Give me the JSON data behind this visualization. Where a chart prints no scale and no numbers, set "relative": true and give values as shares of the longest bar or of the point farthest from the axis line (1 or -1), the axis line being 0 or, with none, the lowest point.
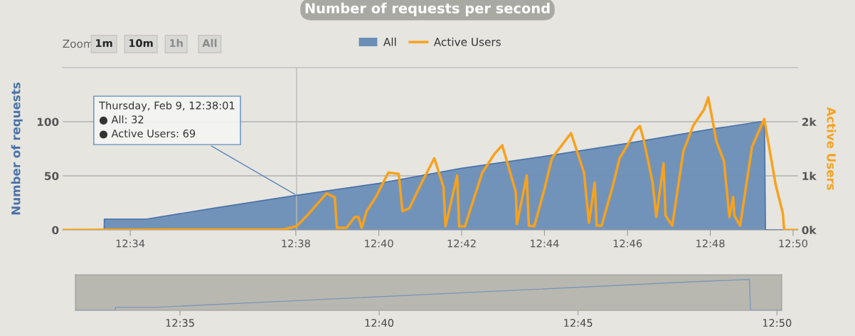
{
  "chart_data": [
    {
      "type": "area",
      "title": "Number of requests per second",
      "ylabel": "Number of requests",
      "y2label": "Active Users",
      "series": [
        {
          "name": "All",
          "type": "area",
          "color": "#6b8eb6",
          "x": [
            12.5395,
            12.5562,
            12.5563,
            12.5733,
            12.6,
            12.6336,
            12.6667,
            12.7,
            12.7333,
            12.7667,
            12.8,
            12.82,
            12.8218,
            12.8222,
            12.8353
          ],
          "values": [
            0,
            0,
            10,
            10,
            20,
            32,
            43,
            57,
            68,
            80,
            93,
            100,
            100,
            0,
            0
          ]
        },
        {
          "name": "Active Users",
          "type": "line",
          "axis": "y2",
          "color": "#f7a21d",
          "x": [
            12.5395,
            12.6285,
            12.6336,
            12.6378,
            12.6457,
            12.649,
            12.6498,
            12.6537,
            12.657,
            12.6585,
            12.6598,
            12.6618,
            12.6655,
            12.6705,
            12.6747,
            12.6762,
            12.679,
            12.6835,
            12.689,
            12.6927,
            12.6935,
            12.6982,
            12.699,
            12.7013,
            12.7083,
            12.7132,
            12.7163,
            12.7218,
            12.7222,
            12.7262,
            12.727,
            12.7292,
            12.7332,
            12.7363,
            12.7407,
            12.744,
            12.7492,
            12.7512,
            12.7535,
            12.7543,
            12.7563,
            12.7607,
            12.7635,
            12.7675,
            12.7697,
            12.7717,
            12.7732,
            12.7768,
            12.7783,
            12.7812,
            12.782,
            12.7847,
            12.7892,
            12.7932,
            12.7975,
            12.7992,
            12.8025,
            12.8055,
            12.8077,
            12.8092,
            12.8097,
            12.812,
            12.8168,
            12.8217,
            12.8263,
            12.8292,
            12.8297,
            12.8353
          ],
          "values": [
            0,
            10,
            69,
            265,
            675,
            600,
            40,
            40,
            240,
            240,
            40,
            345,
            610,
            1060,
            1035,
            345,
            400,
            835,
            1325,
            795,
            66,
            1005,
            66,
            66,
            1060,
            1405,
            1565,
            700,
            105,
            1005,
            80,
            66,
            740,
            1325,
            1590,
            1790,
            1060,
            130,
            875,
            80,
            80,
            795,
            1325,
            1630,
            1830,
            1920,
            1670,
            875,
            240,
            1230,
            265,
            80,
            1460,
            1935,
            2225,
            2450,
            1630,
            1270,
            240,
            610,
            265,
            80,
            1540,
            2050,
            835,
            305,
            0,
            0
          ]
        }
      ],
      "xlim": [
        12.5395,
        12.8353
      ],
      "xticks": [
        {
          "value": 12.5667,
          "label": "12:34"
        },
        {
          "value": 12.6333,
          "label": "12:38"
        },
        {
          "value": 12.6667,
          "label": "12:40"
        },
        {
          "value": 12.7,
          "label": "12:42"
        },
        {
          "value": 12.7333,
          "label": "12:44"
        },
        {
          "value": 12.7667,
          "label": "12:46"
        },
        {
          "value": 12.8,
          "label": "12:48"
        },
        {
          "value": 12.8333,
          "label": "12:50"
        }
      ],
      "ylim": [
        0,
        150
      ],
      "yticks": [
        0,
        50,
        100
      ],
      "y2lim": [
        0,
        3000
      ],
      "y2ticks": [
        {
          "value": 0,
          "label": "0k"
        },
        {
          "value": 1000,
          "label": "1k"
        },
        {
          "value": 2000,
          "label": "2k"
        }
      ],
      "grid": "y",
      "legend": "top",
      "ref_lines": [
        {
          "axis": "x",
          "value": 12.6336,
          "color": "#b8b8b8"
        }
      ],
      "annotations": [
        "Zoom",
        "1m",
        "10m",
        "1h",
        "All",
        {
          "text": "Thursday, Feb 9, 12:38:01\n● All: 32\n● Active Users: 69",
          "x": 12.6336,
          "y": 32
        }
      ]
    },
    {
      "type": "line",
      "relative": true,
      "tick_labels": "x",
      "series": [
        {
          "color": "#7f97b8",
          "x": [
            12.5395,
            12.5562,
            12.5563,
            12.5733,
            12.6336,
            12.8,
            12.8218,
            12.8222,
            12.8353
          ],
          "values": [
            0,
            0,
            0.1,
            0.1,
            0.32,
            0.93,
            1,
            0,
            0
          ]
        }
      ],
      "xlim": [
        12.5395,
        12.8353
      ],
      "xticks": [
        {
          "value": 12.5833,
          "label": "12:35"
        },
        {
          "value": 12.6667,
          "label": "12:40"
        },
        {
          "value": 12.75,
          "label": "12:45"
        },
        {
          "value": 12.8333,
          "label": "12:50"
        }
      ]
    }
  ]
}
